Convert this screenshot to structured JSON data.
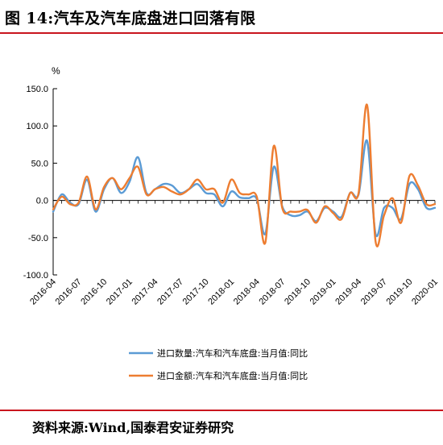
{
  "header": {
    "title": "图 14:汽车及汽车底盘进口回落有限"
  },
  "footer": {
    "source": "资料来源:Wind,国泰君安证券研究"
  },
  "colors": {
    "accent_rule": "#c9151e",
    "series_quantity": "#5b9bd5",
    "series_amount": "#ed7d31"
  },
  "chart_data": {
    "type": "line",
    "ylabel": "%",
    "ylim": [
      -100,
      150
    ],
    "yticks": [
      "150.0",
      "100.0",
      "50.0",
      "0.0",
      "-50.0",
      "-100.0"
    ],
    "xtick_labels": [
      "2016-04",
      "2016-07",
      "2016-10",
      "2017-01",
      "2017-04",
      "2017-07",
      "2017-10",
      "2018-01",
      "2018-04",
      "2018-07",
      "2018-10",
      "2019-01",
      "2019-04",
      "2019-07",
      "2019-10",
      "2020-01"
    ],
    "legend_position": "bottom",
    "x": [
      "2016-04",
      "2016-05",
      "2016-06",
      "2016-07",
      "2016-08",
      "2016-09",
      "2016-10",
      "2016-11",
      "2016-12",
      "2017-01",
      "2017-02",
      "2017-03",
      "2017-04",
      "2017-05",
      "2017-06",
      "2017-07",
      "2017-08",
      "2017-09",
      "2017-10",
      "2017-11",
      "2017-12",
      "2018-01",
      "2018-02",
      "2018-03",
      "2018-04",
      "2018-05",
      "2018-06",
      "2018-07",
      "2018-08",
      "2018-09",
      "2018-10",
      "2018-11",
      "2018-12",
      "2019-01",
      "2019-02",
      "2019-03",
      "2019-04",
      "2019-05",
      "2019-06",
      "2019-07",
      "2019-08",
      "2019-09",
      "2019-10",
      "2019-11",
      "2019-12",
      "2020-01"
    ],
    "series": [
      {
        "name": "进口数量:汽车和汽车底盘:当月值:同比",
        "values": [
          -15,
          8,
          -3,
          -5,
          28,
          -15,
          15,
          30,
          10,
          25,
          58,
          10,
          15,
          22,
          20,
          10,
          15,
          22,
          10,
          8,
          -8,
          12,
          4,
          3,
          2,
          -45,
          45,
          -8,
          -20,
          -20,
          -15,
          -28,
          -10,
          -15,
          -22,
          10,
          8,
          80,
          -45,
          -10,
          -10,
          -25,
          22,
          15,
          -10,
          -10
        ],
        "color": "#5b9bd5"
      },
      {
        "name": "进口金额:汽车和汽车底盘:当月值:同比",
        "values": [
          -12,
          5,
          -5,
          -3,
          32,
          -12,
          18,
          30,
          15,
          30,
          45,
          8,
          15,
          18,
          12,
          8,
          15,
          28,
          15,
          15,
          -3,
          28,
          10,
          8,
          5,
          -57,
          73,
          -10,
          -15,
          -15,
          -13,
          -30,
          -8,
          -17,
          -25,
          10,
          10,
          128,
          -55,
          -20,
          3,
          -30,
          33,
          20,
          -5,
          -5
        ],
        "color": "#ed7d31"
      }
    ]
  }
}
